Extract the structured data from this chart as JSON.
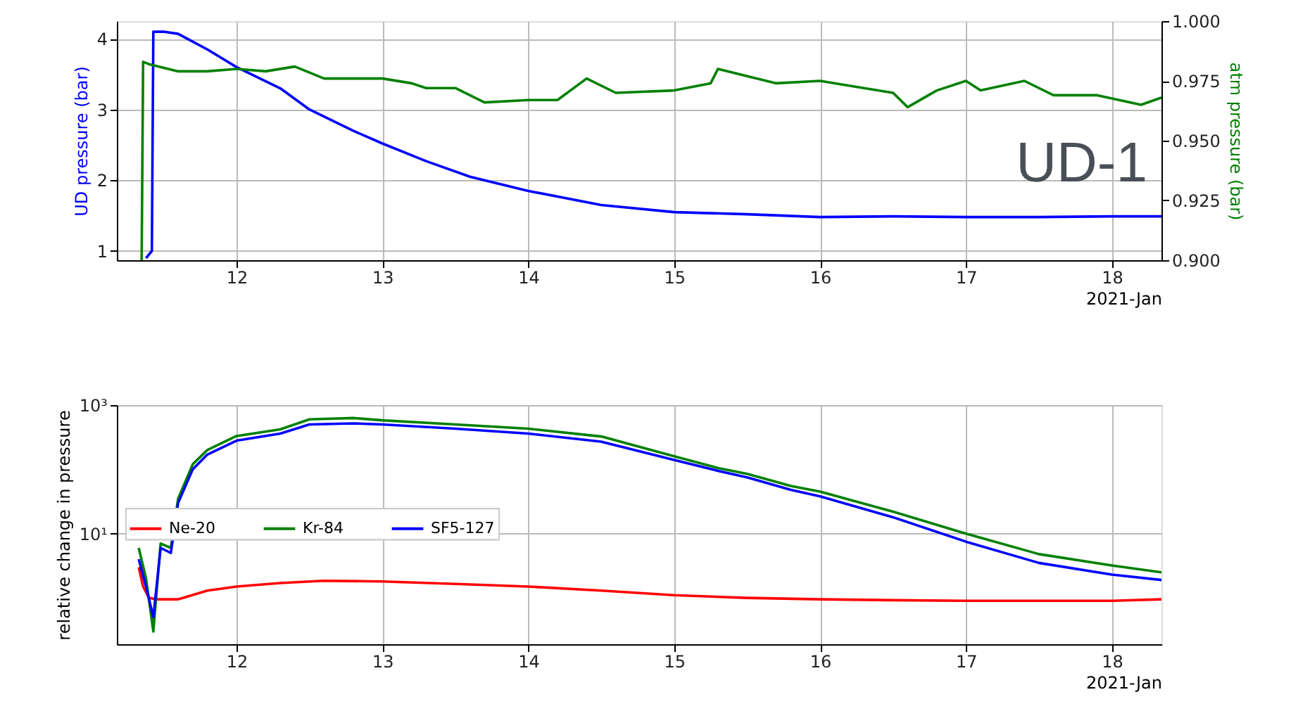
{
  "chart_data": [
    {
      "type": "line",
      "xlabel": "2021-Jan",
      "ylabel": "UD pressure (bar)",
      "y2label": "atm pressure (bar)",
      "xlim": [
        11.18,
        18.34
      ],
      "xticks": [
        12,
        13,
        14,
        15,
        16,
        17,
        18
      ],
      "ylim": [
        0.87,
        4.25
      ],
      "yticks": [
        1,
        2,
        3,
        4
      ],
      "y2lim": [
        0.9,
        1.0
      ],
      "y2ticks": [
        {
          "value": 0.9,
          "label": "0.900"
        },
        {
          "value": 0.925,
          "label": "0.925"
        },
        {
          "value": 0.95,
          "label": "0.950"
        },
        {
          "value": 0.975,
          "label": "0.975"
        },
        {
          "value": 1.0,
          "label": "1.000"
        }
      ],
      "grid": true,
      "legend": false,
      "annotations": [
        "UD-1"
      ],
      "series": [
        {
          "color": "#0000ff",
          "x": [
            11.38,
            11.42,
            11.43,
            11.5,
            11.6,
            11.8,
            12.0,
            12.3,
            12.5,
            12.8,
            13.0,
            13.3,
            13.6,
            14.0,
            14.5,
            15.0,
            15.5,
            16.0,
            16.5,
            17.0,
            17.5,
            18.0,
            18.34
          ],
          "values": [
            0.9,
            1.0,
            4.1,
            4.1,
            4.07,
            3.85,
            3.6,
            3.3,
            3.0,
            2.7,
            2.52,
            2.27,
            2.05,
            1.85,
            1.65,
            1.55,
            1.52,
            1.48,
            1.49,
            1.48,
            1.48,
            1.49,
            1.49
          ]
        },
        {
          "color": "#008000",
          "axis": "y2",
          "x": [
            11.35,
            11.36,
            11.4,
            11.6,
            11.8,
            12.0,
            12.2,
            12.4,
            12.6,
            12.8,
            13.0,
            13.2,
            13.3,
            13.5,
            13.7,
            14.0,
            14.2,
            14.4,
            14.6,
            15.0,
            15.25,
            15.3,
            15.5,
            15.7,
            16.0,
            16.3,
            16.5,
            16.6,
            16.8,
            17.0,
            17.1,
            17.4,
            17.6,
            17.9,
            18.2,
            18.34
          ],
          "values": [
            0.9,
            0.983,
            0.982,
            0.979,
            0.979,
            0.98,
            0.979,
            0.981,
            0.976,
            0.976,
            0.976,
            0.974,
            0.972,
            0.972,
            0.966,
            0.967,
            0.967,
            0.976,
            0.97,
            0.971,
            0.974,
            0.98,
            0.977,
            0.974,
            0.975,
            0.972,
            0.97,
            0.964,
            0.971,
            0.975,
            0.971,
            0.975,
            0.969,
            0.969,
            0.965,
            0.968
          ]
        }
      ]
    },
    {
      "type": "line",
      "xlabel": "2021-Jan",
      "ylabel": "relative change in pressure",
      "log": "y",
      "xlim": [
        11.18,
        18.34
      ],
      "xticks": [
        12,
        13,
        14,
        15,
        16,
        17,
        18
      ],
      "ylim": [
        0.19,
        1000
      ],
      "yticks": [
        {
          "value": 10,
          "label": "10¹"
        },
        {
          "value": 1000,
          "label": "10³"
        }
      ],
      "grid": true,
      "legend": "left",
      "series": [
        {
          "name": "Ne-20",
          "color": "#ff0000",
          "x": [
            11.33,
            11.36,
            11.4,
            11.45,
            11.6,
            11.8,
            12.0,
            12.3,
            12.6,
            13.0,
            13.5,
            14.0,
            14.5,
            15.0,
            15.5,
            16.0,
            16.5,
            17.0,
            17.5,
            18.0,
            18.34
          ],
          "values": [
            3,
            1.5,
            1.0,
            0.95,
            0.95,
            1.3,
            1.5,
            1.7,
            1.85,
            1.8,
            1.65,
            1.5,
            1.3,
            1.1,
            1.0,
            0.95,
            0.92,
            0.9,
            0.9,
            0.9,
            0.95
          ]
        },
        {
          "name": "Kr-84",
          "color": "#008000",
          "x": [
            11.33,
            11.38,
            11.43,
            11.48,
            11.55,
            11.6,
            11.7,
            11.8,
            12.0,
            12.3,
            12.5,
            12.8,
            13.0,
            13.5,
            14.0,
            14.5,
            15.0,
            15.3,
            15.5,
            15.8,
            16.0,
            16.5,
            17.0,
            17.5,
            18.0,
            18.34
          ],
          "values": [
            6,
            2,
            0.3,
            7,
            6,
            35,
            120,
            200,
            330,
            420,
            600,
            630,
            580,
            500,
            430,
            325,
            160,
            105,
            85,
            55,
            45,
            22,
            10,
            4.8,
            3.2,
            2.5
          ]
        },
        {
          "name": "SF5-127",
          "color": "#0000ff",
          "x": [
            11.33,
            11.38,
            11.43,
            11.48,
            11.55,
            11.6,
            11.7,
            11.8,
            12.0,
            12.3,
            12.5,
            12.8,
            13.0,
            13.5,
            14.0,
            14.5,
            15.0,
            15.3,
            15.5,
            15.8,
            16.0,
            16.5,
            17.0,
            17.5,
            18.0,
            18.34
          ],
          "values": [
            4,
            1.5,
            0.5,
            6,
            5,
            30,
            100,
            170,
            280,
            360,
            500,
            520,
            500,
            430,
            360,
            270,
            140,
            95,
            75,
            48,
            38,
            18,
            7.5,
            3.5,
            2.3,
            1.9
          ]
        }
      ]
    }
  ]
}
